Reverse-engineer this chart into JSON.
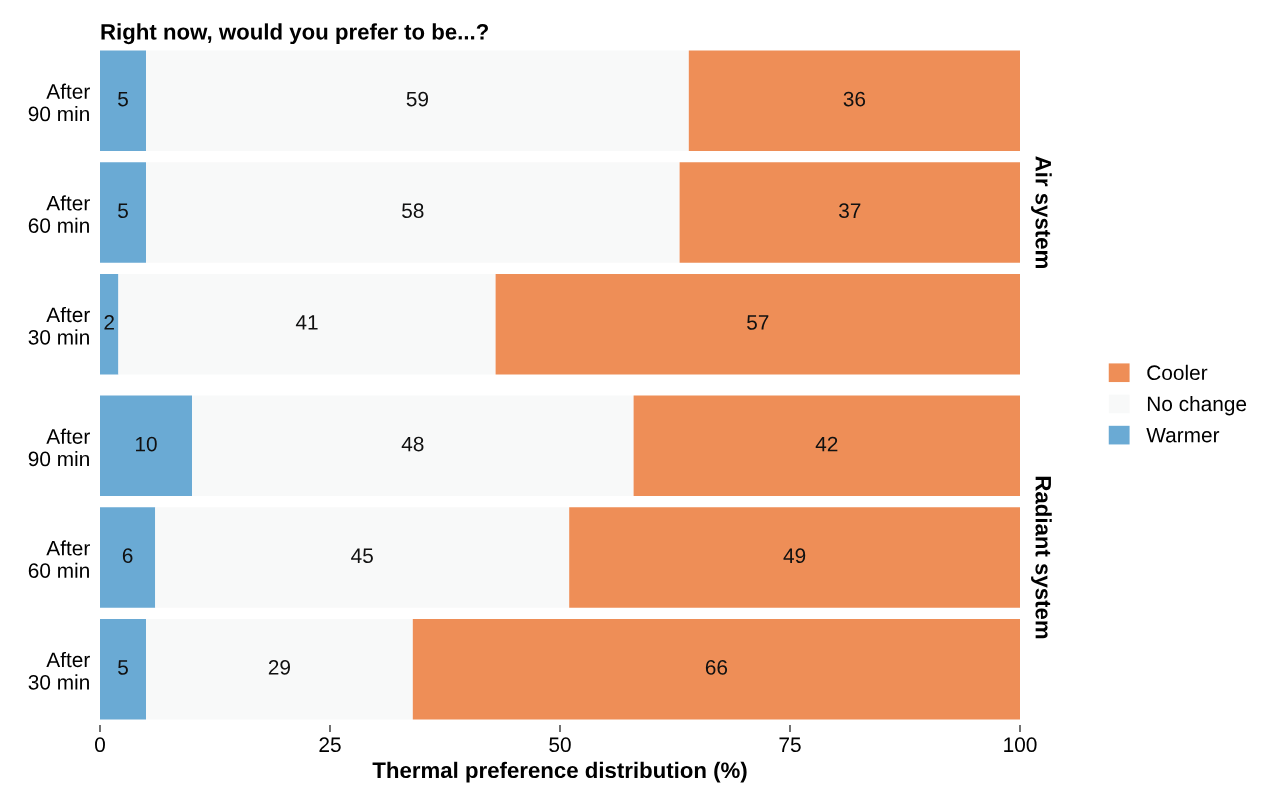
{
  "chart_data": [
    {
      "type": "bar",
      "orientation": "horizontal",
      "stacked": true,
      "title": "Right now, would you prefer to be...?",
      "annotations": [
        "Air system"
      ],
      "categories": [
        "After\n90 min",
        "After\n60 min",
        "After\n30 min"
      ],
      "series": [
        {
          "name": "Warmer",
          "color": "#6aaad4",
          "values": [
            5,
            5,
            2
          ]
        },
        {
          "name": "No change",
          "color": "#f8f9f9",
          "values": [
            59,
            58,
            41
          ]
        },
        {
          "name": "Cooler",
          "color": "#ee8e57",
          "values": [
            36,
            37,
            57
          ]
        }
      ],
      "xlim": [
        0,
        100
      ],
      "xticks": [
        0,
        25,
        50,
        75,
        100
      ],
      "tick_labels": "y",
      "data_labels": true,
      "grid": false,
      "legend": "right"
    },
    {
      "type": "bar",
      "orientation": "horizontal",
      "stacked": true,
      "xlabel": "Thermal preference distribution (%)",
      "annotations": [
        "Radiant system"
      ],
      "categories": [
        "After\n90 min",
        "After\n60 min",
        "After\n30 min"
      ],
      "series": [
        {
          "color": "#6aaad4",
          "values": [
            10,
            6,
            5
          ]
        },
        {
          "color": "#f8f9f9",
          "values": [
            48,
            45,
            29
          ]
        },
        {
          "color": "#ee8e57",
          "values": [
            42,
            49,
            66
          ]
        }
      ],
      "xlim": [
        0,
        100
      ],
      "xticks": [
        0,
        25,
        50,
        75,
        100
      ],
      "data_labels": true,
      "grid": false
    }
  ]
}
